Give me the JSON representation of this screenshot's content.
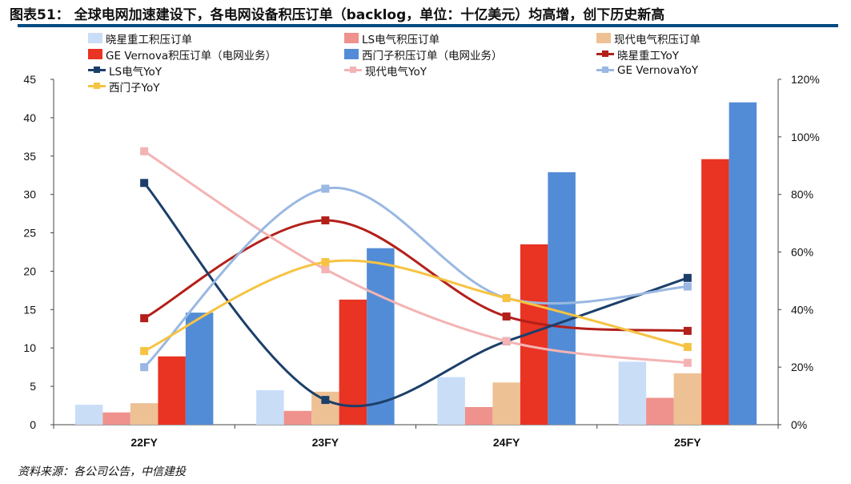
{
  "title": "图表51： 全球电网加速建设下，各电网设备积压订单（backlog，单位：十亿美元）均高增，创下历史新高",
  "source": "资料来源：各公司公告，中信建投",
  "chart_data": {
    "type": "bar+line",
    "categories": [
      "22FY",
      "23FY",
      "24FY",
      "25FY"
    ],
    "y_left": {
      "range": [
        0,
        45
      ],
      "ticks": [
        0,
        5,
        10,
        15,
        20,
        25,
        30,
        35,
        40,
        45
      ]
    },
    "y_right": {
      "range": [
        0,
        120
      ],
      "ticks": [
        "0%",
        "20%",
        "40%",
        "60%",
        "80%",
        "100%",
        "120%"
      ]
    },
    "bar_series": [
      {
        "name": "晓星重工积压订单",
        "color": "#c9ddf7",
        "values": [
          2.6,
          4.5,
          6.2,
          8.2
        ]
      },
      {
        "name": "LS电气积压订单",
        "color": "#ef918c",
        "values": [
          1.6,
          1.8,
          2.3,
          3.5
        ]
      },
      {
        "name": "现代电气积压订单",
        "color": "#edc194",
        "values": [
          2.8,
          4.3,
          5.5,
          6.7
        ]
      },
      {
        "name": "GE Vernova积压订单（电网业务）",
        "color": "#e93323",
        "values": [
          8.9,
          16.3,
          23.5,
          34.6
        ]
      },
      {
        "name": "西门子积压订单（电网业务）",
        "color": "#538cd6",
        "values": [
          14.6,
          23.0,
          32.9,
          42.0
        ]
      }
    ],
    "line_series": [
      {
        "name": "晓星重工YoY",
        "color": "#b3201a",
        "values": [
          37,
          71,
          37.6,
          32.6
        ]
      },
      {
        "name": "LS电气YoY",
        "color": "#1c3f6a",
        "values": [
          84,
          8.6,
          29,
          51
        ]
      },
      {
        "name": "现代电气YoY",
        "color": "#f4b3b3",
        "values": [
          95,
          54,
          29,
          21.5
        ]
      },
      {
        "name": "GE VernovaYoY",
        "color": "#9ab8e2",
        "values": [
          20,
          82,
          44,
          48
        ]
      },
      {
        "name": "西门子YoY",
        "color": "#f6c343",
        "values": [
          25.6,
          56.5,
          44,
          27
        ]
      }
    ],
    "legend_order": [
      0,
      1,
      2,
      3,
      4,
      "l0",
      "l1",
      "l2",
      "l3",
      "l4"
    ]
  }
}
